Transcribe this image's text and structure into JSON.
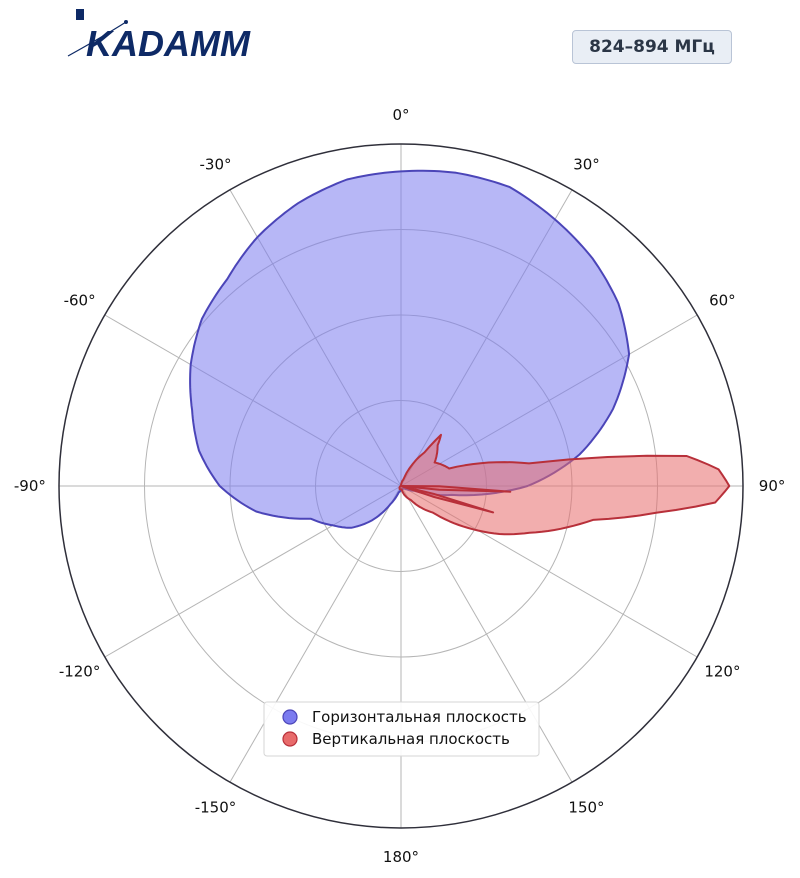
{
  "brand": {
    "name": "KADAMM",
    "color": "#0e2a66"
  },
  "badge": {
    "text": "824–894 МГц"
  },
  "chart_data": {
    "type": "polar",
    "angle_unit": "deg",
    "zero_direction": "top",
    "direction": "clockwise",
    "r_range": [
      0,
      1
    ],
    "r_grid": [
      0.25,
      0.5,
      0.75
    ],
    "angle_ticks": [
      0,
      30,
      60,
      90,
      120,
      150,
      180,
      -150,
      -120,
      -90,
      -60,
      -30
    ],
    "angle_tick_labels": [
      "0°",
      "30°",
      "60°",
      "90°",
      "120°",
      "150°",
      "180°",
      "-150°",
      "-120°",
      "-90°",
      "-60°",
      "-30°"
    ],
    "legend_position": "bottom-center",
    "series": [
      {
        "name": "Горизонтальная плоскость",
        "fill": "#7b7bef",
        "stroke": "#4b45b8",
        "points": [
          [
            0,
            0.92
          ],
          [
            10,
            0.93
          ],
          [
            20,
            0.93
          ],
          [
            30,
            0.9
          ],
          [
            40,
            0.87
          ],
          [
            50,
            0.83
          ],
          [
            60,
            0.77
          ],
          [
            70,
            0.66
          ],
          [
            80,
            0.53
          ],
          [
            90,
            0.37
          ],
          [
            100,
            0.15
          ],
          [
            110,
            0.04
          ],
          [
            120,
            0.02
          ],
          [
            130,
            0.01
          ],
          [
            150,
            0.01
          ],
          [
            180,
            0.01
          ],
          [
            200,
            0.02
          ],
          [
            210,
            0.06
          ],
          [
            220,
            0.13
          ],
          [
            230,
            0.19
          ],
          [
            240,
            0.23
          ],
          [
            250,
            0.28
          ],
          [
            260,
            0.43
          ],
          [
            270,
            0.53
          ],
          [
            280,
            0.6
          ],
          [
            290,
            0.65
          ],
          [
            300,
            0.71
          ],
          [
            310,
            0.76
          ],
          [
            320,
            0.79
          ],
          [
            330,
            0.84
          ],
          [
            340,
            0.88
          ],
          [
            350,
            0.91
          ]
        ]
      },
      {
        "name": "Вертикальная плоскость",
        "fill": "#e86b6b",
        "stroke": "#b8303a",
        "points": [
          [
            0,
            0.0
          ],
          [
            20,
            0.02
          ],
          [
            35,
            0.12
          ],
          [
            38,
            0.19
          ],
          [
            42,
            0.16
          ],
          [
            55,
            0.12
          ],
          [
            70,
            0.15
          ],
          [
            80,
            0.38
          ],
          [
            84,
            0.84
          ],
          [
            87,
            0.93
          ],
          [
            90,
            0.96
          ],
          [
            93,
            0.92
          ],
          [
            96,
            0.75
          ],
          [
            100,
            0.57
          ],
          [
            104,
            0.5
          ],
          [
            110,
            0.4
          ],
          [
            116,
            0.32
          ],
          [
            120,
            0.26
          ],
          [
            130,
            0.12
          ],
          [
            145,
            0.05
          ],
          [
            170,
            0.01
          ],
          [
            200,
            0.01
          ],
          [
            260,
            0.0
          ],
          [
            340,
            0.0
          ]
        ],
        "lobes": [
          {
            "angle": 93,
            "r": 0.32,
            "width": 2.5
          },
          {
            "angle": 106,
            "r": 0.28,
            "width": 2.5
          }
        ]
      }
    ]
  }
}
